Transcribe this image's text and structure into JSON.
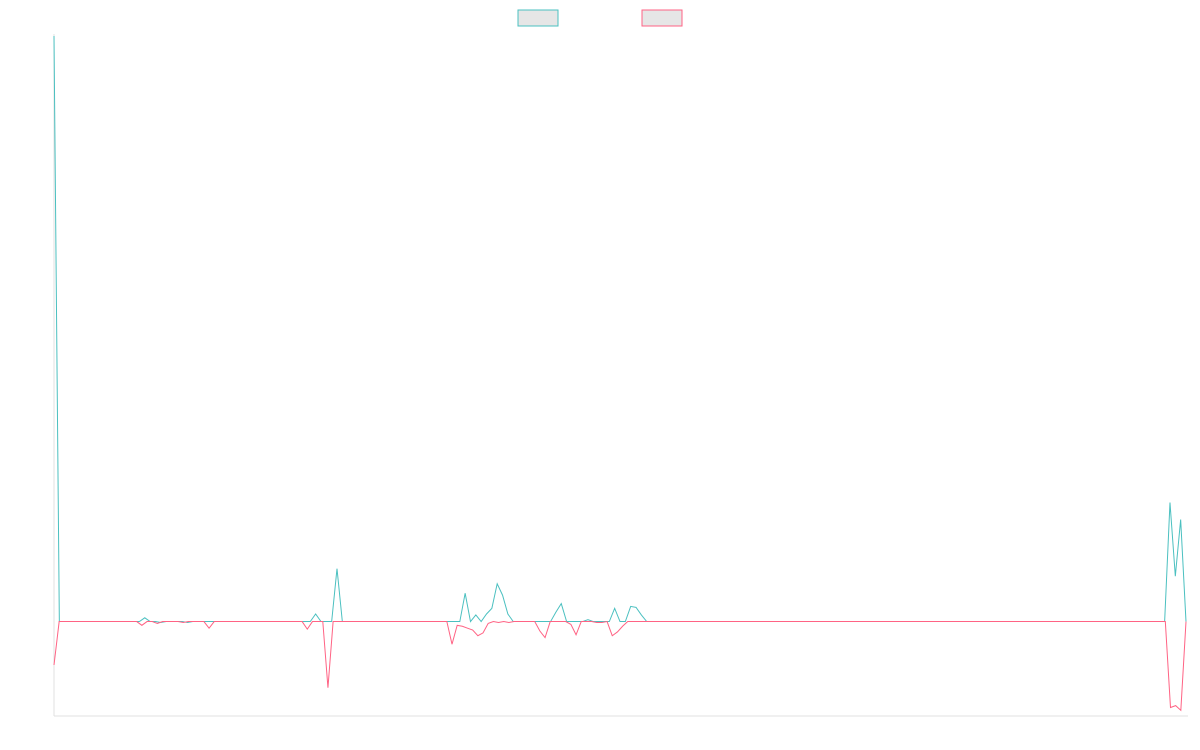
{
  "chart_data": {
    "type": "line",
    "title": "",
    "xlabel": "",
    "ylabel": "",
    "legend_position": "top-center",
    "grid": false,
    "ylim": [
      -5,
      31
    ],
    "series": [
      {
        "color": "#4bc0c0",
        "values": [
          31.0,
          0,
          0,
          0,
          0,
          0,
          0,
          0,
          0,
          0,
          0,
          0,
          0,
          0,
          0,
          0,
          0,
          0.2,
          0,
          0,
          -0.05,
          0,
          0,
          0,
          0,
          -0.05,
          0,
          0,
          0,
          0,
          0,
          0,
          0,
          0,
          0,
          0,
          0,
          0,
          0,
          0,
          0,
          0,
          0,
          0,
          0,
          0,
          0,
          0,
          0,
          0.4,
          0,
          0,
          0,
          2.8,
          0,
          0,
          0,
          0,
          0,
          0,
          0,
          0,
          0,
          0,
          0,
          0,
          0,
          0,
          0,
          0,
          0,
          0,
          0,
          0,
          0,
          0,
          0,
          1.5,
          0,
          0.35,
          0,
          0.4,
          0.7,
          2.0,
          1.4,
          0.4,
          0,
          0,
          0,
          0,
          0,
          0,
          0,
          0,
          0.5,
          0.95,
          0,
          0,
          0,
          0,
          0.1,
          0,
          0,
          0,
          0,
          0.7,
          0,
          0,
          0.8,
          0.75,
          0.35,
          0,
          0,
          0,
          0,
          0,
          0,
          0,
          0,
          0,
          0,
          0,
          0,
          0,
          0,
          0,
          0,
          0,
          0,
          0,
          0,
          0,
          0,
          0,
          0,
          0,
          0,
          0,
          0,
          0,
          0,
          0,
          0,
          0,
          0,
          0,
          0,
          0,
          0,
          0,
          0,
          0,
          0,
          0,
          0,
          0,
          0,
          0,
          0,
          0,
          0,
          0,
          0,
          0,
          0,
          0,
          0,
          0,
          0,
          0,
          0,
          0,
          0,
          0,
          0,
          0,
          0,
          0,
          0,
          0,
          0,
          0,
          0,
          0,
          0,
          0,
          0,
          0,
          0,
          0,
          0,
          0,
          0,
          0,
          0,
          0,
          0,
          0,
          0,
          0,
          0,
          0,
          0,
          0,
          0,
          0,
          0,
          0,
          0,
          6.3,
          2.4,
          5.4,
          0
        ]
      },
      {
        "color": "#ff6384",
        "values": [
          -2.3,
          0,
          0,
          0,
          0,
          0,
          0,
          0,
          0,
          0,
          0,
          0,
          0,
          0,
          0,
          0,
          0,
          -0.2,
          0,
          0,
          -0.1,
          0,
          0,
          0,
          0,
          -0.05,
          0,
          0,
          0,
          0,
          -0.35,
          0,
          0,
          0,
          0,
          0,
          0,
          0,
          0,
          0,
          0,
          0,
          0,
          0,
          0,
          0,
          0,
          0,
          0,
          -0.4,
          0,
          0,
          0,
          -3.5,
          0,
          0,
          0,
          0,
          0,
          0,
          0,
          0,
          0,
          0,
          0,
          0,
          0,
          0,
          0,
          0,
          0,
          0,
          0,
          0,
          0,
          0,
          0,
          -1.2,
          -0.2,
          -0.25,
          -0.35,
          -0.45,
          -0.75,
          -0.6,
          -0.1,
          0,
          -0.05,
          0,
          -0.05,
          0,
          0,
          0,
          0,
          0,
          -0.5,
          -0.85,
          0,
          0,
          0,
          0,
          -0.15,
          -0.7,
          0,
          0,
          0,
          -0.05,
          -0.05,
          0,
          -0.75,
          -0.55,
          -0.25,
          0,
          0,
          0,
          0,
          0,
          0,
          0,
          0,
          0,
          0,
          0,
          0,
          0,
          0,
          0,
          0,
          0,
          0,
          0,
          0,
          0,
          0,
          0,
          0,
          0,
          0,
          0,
          0,
          0,
          0,
          0,
          0,
          0,
          0,
          0,
          0,
          0,
          0,
          0,
          0,
          0,
          0,
          0,
          0,
          0,
          0,
          0,
          0,
          0,
          0,
          0,
          0,
          0,
          0,
          0,
          0,
          0,
          0,
          0,
          0,
          0,
          0,
          0,
          0,
          0,
          0,
          0,
          0,
          0,
          0,
          0,
          0,
          0,
          0,
          0,
          0,
          0,
          0,
          0,
          0,
          0,
          0,
          0,
          0,
          0,
          0,
          0,
          0,
          0,
          0,
          0,
          0,
          0,
          0,
          0,
          0,
          0,
          0,
          0,
          0,
          0,
          0,
          0,
          0,
          0,
          -4.55,
          -4.45,
          -4.7,
          0
        ]
      }
    ]
  }
}
